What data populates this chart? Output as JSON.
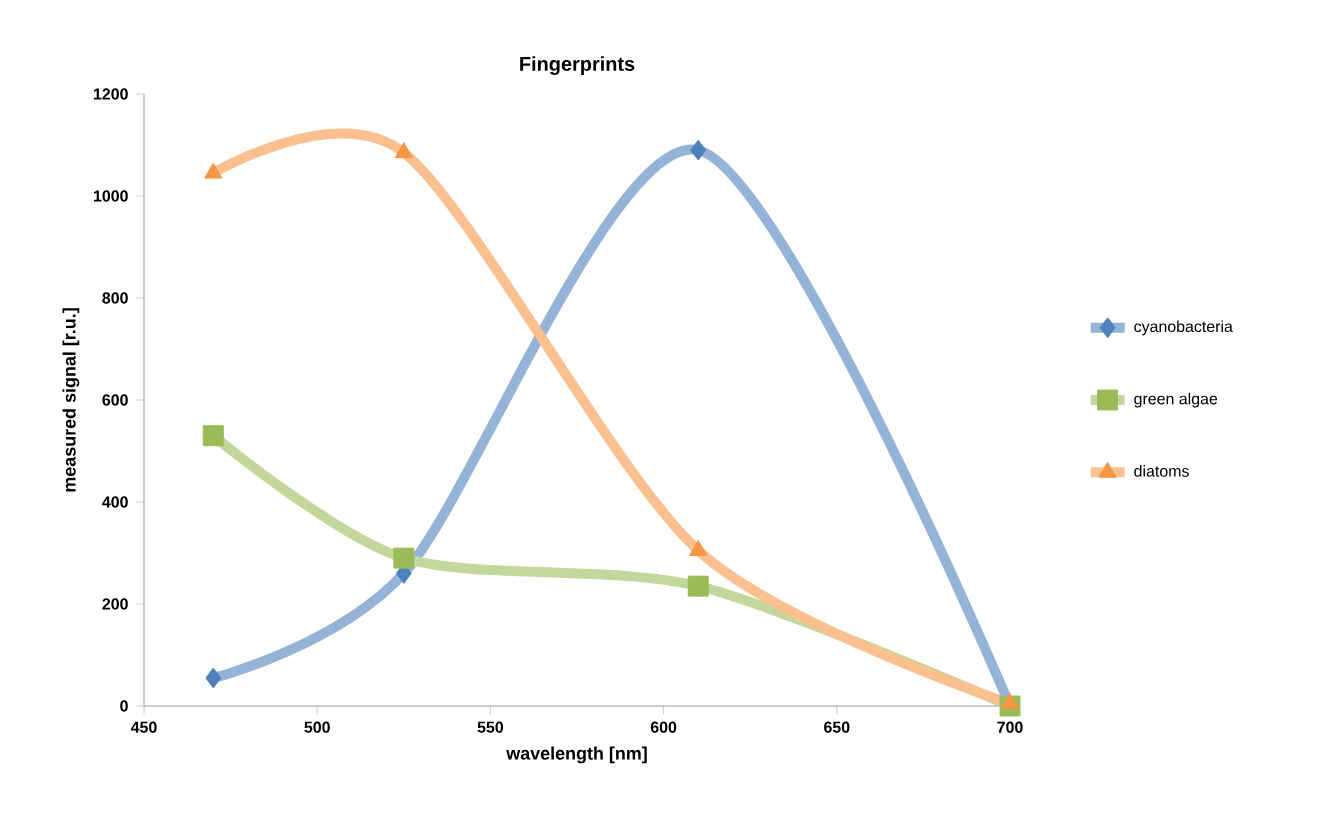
{
  "chart_data": {
    "type": "line",
    "title": "Fingerprints",
    "xlabel": "wavelength [nm]",
    "ylabel": "measured signal [r.u.]",
    "x": [
      470,
      525,
      610,
      700
    ],
    "series": [
      {
        "name": "cyanobacteria",
        "color": "#4f81bd",
        "marker": "diamond",
        "values": [
          55,
          260,
          1090,
          0
        ]
      },
      {
        "name": "green algae",
        "color": "#9bbb59",
        "marker": "square",
        "values": [
          530,
          290,
          235,
          0
        ]
      },
      {
        "name": "diatoms",
        "color": "#f79646",
        "marker": "triangle",
        "values": [
          1045,
          1085,
          305,
          5
        ]
      }
    ],
    "xlim": [
      450,
      700
    ],
    "xticks": [
      450,
      500,
      550,
      600,
      650,
      700
    ],
    "ylim": [
      0,
      1200
    ],
    "yticks": [
      0,
      200,
      400,
      600,
      800,
      1000,
      1200
    ],
    "legend": "right",
    "grid": false,
    "line_style": "solid"
  }
}
